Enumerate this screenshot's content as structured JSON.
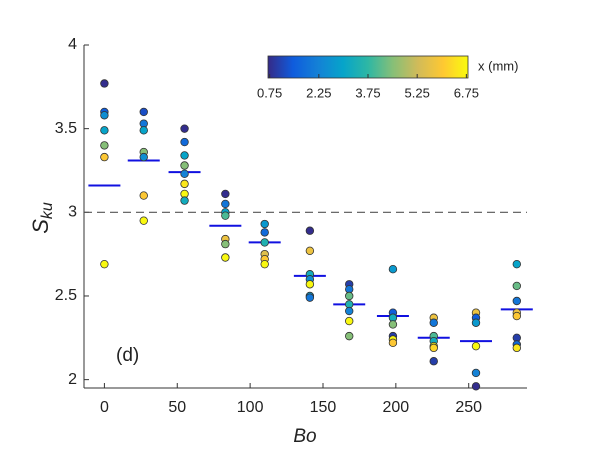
{
  "chart_data": {
    "type": "scatter",
    "xlabel": "Bo",
    "ylabel": {
      "main": "S",
      "sub": "ku"
    },
    "annotation": "(d)",
    "xlim": [
      -14,
      290
    ],
    "ylim": [
      1.95,
      4
    ],
    "xticks": [
      0,
      50,
      100,
      150,
      200,
      250
    ],
    "yticks": [
      2,
      2.5,
      3,
      3.5,
      4
    ],
    "reference_y": 3,
    "points": {
      "x": [
        0,
        0,
        0,
        0,
        0,
        0,
        0,
        27,
        27,
        27,
        27,
        27,
        27,
        27,
        55,
        55,
        55,
        55,
        55,
        55,
        55,
        55,
        83,
        83,
        83,
        83,
        83,
        83,
        83,
        110,
        110,
        110,
        110,
        110,
        110,
        141,
        141,
        141,
        141,
        141,
        141,
        141,
        168,
        168,
        168,
        168,
        168,
        168,
        168,
        198,
        198,
        198,
        198,
        198,
        198,
        198,
        226,
        226,
        226,
        226,
        226,
        226,
        226,
        255,
        255,
        255,
        255,
        255,
        255,
        283,
        283,
        283,
        283,
        283,
        283,
        283,
        283
      ],
      "values": [
        3.77,
        3.6,
        3.58,
        3.49,
        3.4,
        3.33,
        2.69,
        3.6,
        3.53,
        3.49,
        3.36,
        3.33,
        3.1,
        2.95,
        3.5,
        3.42,
        3.34,
        3.28,
        3.23,
        3.17,
        3.11,
        3.07,
        3.11,
        3.05,
        3.0,
        2.98,
        2.84,
        2.81,
        2.73,
        2.93,
        2.88,
        2.82,
        2.75,
        2.72,
        2.69,
        2.89,
        2.77,
        2.63,
        2.6,
        2.57,
        2.5,
        2.49,
        2.57,
        2.54,
        2.5,
        2.45,
        2.41,
        2.35,
        2.26,
        2.66,
        2.4,
        2.37,
        2.33,
        2.26,
        2.24,
        2.22,
        2.37,
        2.34,
        2.26,
        2.23,
        2.2,
        2.19,
        2.11,
        2.4,
        2.37,
        2.34,
        2.2,
        2.04,
        1.96,
        2.69,
        2.56,
        2.47,
        2.4,
        2.38,
        2.25,
        2.21,
        2.19
      ],
      "c": [
        0.75,
        1.5,
        2.5,
        3,
        4.5,
        6,
        6.75,
        1.25,
        2,
        3,
        4.5,
        2.5,
        6,
        6.75,
        0.75,
        1.75,
        3,
        4.5,
        2.25,
        6.5,
        6.75,
        3.25,
        0.75,
        2,
        3,
        4,
        5.75,
        4.5,
        6.75,
        2.75,
        1.75,
        3.5,
        5.5,
        6,
        6.75,
        0.75,
        5.75,
        3.25,
        2.5,
        6.75,
        2.75,
        2,
        1,
        2,
        4.25,
        3.5,
        2.25,
        6.75,
        4.5,
        2.75,
        1.5,
        3.25,
        4.5,
        1,
        6.75,
        6,
        5.75,
        2,
        4,
        3.25,
        6.75,
        6.25,
        1,
        5.75,
        1.5,
        2.75,
        6.75,
        2.25,
        0.75,
        3,
        4.25,
        2,
        5.75,
        6,
        1,
        1.75,
        6.5
      ]
    },
    "means": {
      "color": "#1010e0",
      "x": [
        0,
        27,
        55,
        83,
        110,
        141,
        168,
        198,
        226,
        255,
        283
      ],
      "values": [
        3.16,
        3.31,
        3.24,
        2.92,
        2.82,
        2.62,
        2.45,
        2.38,
        2.25,
        2.23,
        2.42
      ]
    },
    "colorbar": {
      "label": "x (mm)",
      "clim": [
        0.7,
        6.8
      ],
      "ticks": [
        0.75,
        2.25,
        3.75,
        5.25,
        6.75
      ],
      "colormap": [
        "#352a87",
        "#0f5cdd",
        "#1481d6",
        "#06a4ca",
        "#2eb7a4",
        "#87bf77",
        "#d1bb59",
        "#fec832",
        "#f9fb0e"
      ]
    }
  }
}
